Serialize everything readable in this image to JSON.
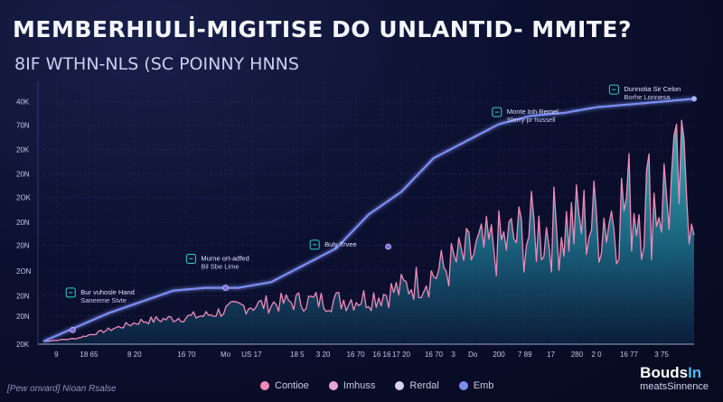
{
  "header": {
    "title": "MEMBERHIULİ-MIGITISE DO UNLANTID- MMITE?",
    "subtitle": "8IF WTHN-NLS (SC POINNY HNNS"
  },
  "footnote": "[Pew onvard] Nioan Rsalse",
  "brand": {
    "name_main": "Bouds",
    "name_accent": "In",
    "tagline": "meatsSinnence"
  },
  "colors": {
    "line": "#7b8ef0",
    "area_top": "#3fc3c9",
    "area_bottom": "#0d2a4a",
    "spikes": "#f08ab8",
    "marker": "#7f6ad8",
    "annotation_icon": "#2fd0c8"
  },
  "chart_data": {
    "type": "line",
    "title": "MEMBERHIULİ-MIGITISE DO UNLANTID- MMITE?",
    "subtitle": "8IF WTHN-NLS (SC POINNY HNNS",
    "ylim": [
      0,
      45
    ],
    "y_ticks": [
      "20K",
      "20N",
      "20N",
      "2ON",
      "20N",
      "20N",
      "2OK",
      "20N",
      "20K",
      "70N",
      "40K"
    ],
    "y_tick_values": [
      0,
      5,
      8.6,
      13,
      17.5,
      21.6,
      26,
      30.2,
      34.5,
      38.8,
      43
    ],
    "x_ticks": [
      "9",
      "18 65",
      "8 20",
      "16 70",
      "Mo",
      "US 17",
      "18 5",
      "3 20",
      "16 70",
      "16 16",
      "17 20",
      "16 70",
      "3",
      "Do",
      "200",
      "7 89",
      "17",
      "280",
      "2 0",
      "16 77",
      "3 75"
    ],
    "x_tick_positions": [
      0.02,
      0.07,
      0.14,
      0.22,
      0.28,
      0.32,
      0.39,
      0.43,
      0.48,
      0.52,
      0.55,
      0.6,
      0.63,
      0.66,
      0.7,
      0.74,
      0.78,
      0.82,
      0.85,
      0.9,
      0.95
    ],
    "grid": true,
    "legend_position": "bottom-center",
    "legend": [
      {
        "label": "Contioe",
        "color": "#f08ab8"
      },
      {
        "label": "Imhuss",
        "color": "#e7a6d6"
      },
      {
        "label": "Rerdal",
        "color": "#d7d2f0"
      },
      {
        "label": "Emb",
        "color": "#7b8ef0"
      }
    ],
    "series": [
      {
        "name": "Emb",
        "style": "line",
        "x": [
          0,
          0.05,
          0.1,
          0.15,
          0.2,
          0.25,
          0.3,
          0.35,
          0.4,
          0.45,
          0.5,
          0.55,
          0.6,
          0.65,
          0.7,
          0.75,
          0.8,
          0.85,
          0.9,
          0.95,
          1.0
        ],
        "y": [
          0.5,
          3,
          5.5,
          7.5,
          9.5,
          10,
          10,
          11,
          14,
          17,
          23,
          27,
          33,
          36,
          39,
          40.5,
          41,
          42,
          42.5,
          43,
          43.5
        ]
      },
      {
        "name": "Contioe",
        "style": "area",
        "x": [
          0,
          0.05,
          0.1,
          0.15,
          0.2,
          0.25,
          0.3,
          0.35,
          0.4,
          0.45,
          0.5,
          0.55,
          0.6,
          0.65,
          0.7,
          0.75,
          0.8,
          0.85,
          0.9,
          0.95,
          1.0
        ],
        "y": [
          0.5,
          1,
          2.5,
          4,
          4.5,
          5,
          6.5,
          7,
          7.5,
          7.5,
          8,
          9.5,
          12,
          15,
          17,
          19,
          20,
          21,
          24,
          25,
          28
        ]
      }
    ],
    "markers": [
      {
        "x": 0.045,
        "y": 2.5
      },
      {
        "x": 0.28,
        "y": 10
      },
      {
        "x": 0.53,
        "y": 17.3
      }
    ],
    "annotations": [
      {
        "text_1": "Bur vuhosle Hand",
        "text_2": "Saneeme Sivte",
        "x": 0.035,
        "y": 8.5
      },
      {
        "text_1": "Murne ort-adfed",
        "text_2": "Bil Sbe Lime",
        "x": 0.22,
        "y": 14.5
      },
      {
        "text_1": "Buly Trvee",
        "text_2": "",
        "x": 0.41,
        "y": 17.0
      },
      {
        "text_1": "Monte Inh Remel",
        "text_2": "Slerry pr hussell",
        "x": 0.69,
        "y": 40.5
      },
      {
        "text_1": "Dunnotia Sir Celon",
        "text_2": "Borhe Lonnesa",
        "x": 0.87,
        "y": 44.5
      }
    ]
  }
}
